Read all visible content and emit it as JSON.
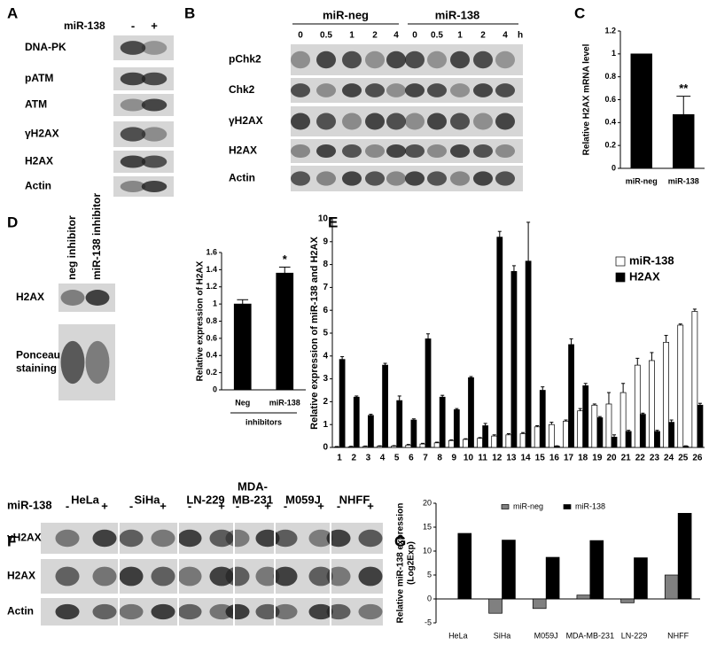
{
  "panels": [
    "A",
    "B",
    "C",
    "D",
    "E",
    "F",
    "G"
  ],
  "blots": {
    "A": {
      "header": "miR-138",
      "lanes": [
        "-",
        "+"
      ],
      "rows": [
        "DNA-PK",
        "pATM",
        "ATM",
        "γH2AX",
        "H2AX",
        "Actin"
      ]
    },
    "B": {
      "groups": [
        {
          "name": "miR-neg",
          "times": [
            0,
            0.5,
            1,
            2,
            4
          ]
        },
        {
          "name": "miR-138",
          "times": [
            0,
            0.5,
            1,
            2,
            4
          ]
        }
      ],
      "unit": "h",
      "rows": [
        "pChk2",
        "Chk2",
        "γH2AX",
        "H2AX",
        "Actin"
      ]
    },
    "D": {
      "lanes": [
        "neg inhibitor",
        "miR-138 inhibitor"
      ],
      "rows": [
        [
          "H2AX"
        ],
        [
          "Ponceau",
          "staining"
        ]
      ]
    },
    "F": {
      "header": "miR-138",
      "cells": [
        [
          "HeLa"
        ],
        [
          "SiHa"
        ],
        [
          "LN-229"
        ],
        [
          "MDA-",
          "MB-231"
        ],
        [
          "M059J"
        ],
        [
          "NHFF"
        ]
      ],
      "lanes": [
        "-",
        "+"
      ],
      "rows": [
        "γH2AX",
        "H2AX",
        "Actin"
      ]
    }
  },
  "chart_data": [
    {
      "type": "bar",
      "categories": [
        "miR-neg",
        "miR-138"
      ],
      "values": [
        1,
        0.47
      ],
      "errors": [
        null,
        0.16
      ],
      "color": "#000000",
      "ylim": [
        0,
        1.2
      ],
      "yticks": [
        0,
        0.2,
        0.4,
        0.6,
        0.8,
        1,
        1.2
      ],
      "ylabel": "Relative H2AX mRNA level",
      "annotations": [
        "**"
      ]
    },
    {
      "type": "bar",
      "categories": [
        "Neg",
        "miR-138"
      ],
      "values": [
        1.0,
        1.36
      ],
      "errors": [
        0.05,
        0.07
      ],
      "color": "#000000",
      "ylim": [
        0,
        1.6
      ],
      "yticks": [
        0,
        0.2,
        0.4,
        0.6,
        0.8,
        1,
        1.2,
        1.4,
        1.6
      ],
      "ylabel": "Relative expression of H2AX",
      "xlabel": "inhibitors",
      "annotations": [
        "*"
      ]
    },
    {
      "type": "bar",
      "categories": [
        "1",
        "2",
        "3",
        "4",
        "5",
        "6",
        "7",
        "8",
        "9",
        "10",
        "11",
        "12",
        "13",
        "14",
        "15",
        "16",
        "17",
        "18",
        "19",
        "20",
        "21",
        "22",
        "23",
        "24",
        "25",
        "26"
      ],
      "series": [
        {
          "name": "miR-138",
          "color": "#ffffff",
          "values": [
            0.02,
            0.03,
            0.04,
            0.05,
            0.06,
            0.1,
            0.15,
            0.2,
            0.3,
            0.35,
            0.4,
            0.5,
            0.55,
            0.6,
            0.9,
            1.0,
            1.15,
            1.6,
            1.85,
            1.9,
            2.4,
            3.6,
            3.8,
            4.6,
            5.35,
            5.95
          ],
          "errors": [
            0.02,
            0.02,
            0.02,
            0.02,
            0.02,
            0.03,
            0.03,
            0.03,
            0.03,
            0.03,
            0.03,
            0.05,
            0.05,
            0.05,
            0.05,
            0.1,
            0.05,
            0.1,
            0.05,
            0.5,
            0.4,
            0.3,
            0.35,
            0.3,
            0.05,
            0.1
          ]
        },
        {
          "name": "H2AX",
          "color": "#000000",
          "values": [
            3.85,
            2.2,
            1.4,
            3.6,
            2.05,
            1.2,
            4.75,
            2.2,
            1.65,
            3.05,
            0.95,
            9.2,
            7.7,
            8.15,
            2.5,
            0.05,
            4.5,
            2.7,
            1.3,
            0.45,
            0.7,
            1.45,
            0.7,
            1.1,
            0.05,
            1.85
          ],
          "errors": [
            0.12,
            0.05,
            0.05,
            0.08,
            0.2,
            0.05,
            0.22,
            0.08,
            0.05,
            0.05,
            0.1,
            0.25,
            0.25,
            1.7,
            0.15,
            0.02,
            0.25,
            0.1,
            0.05,
            0.1,
            0.05,
            0.05,
            0.05,
            0.1,
            0.02,
            0.08
          ]
        }
      ],
      "ylim": [
        0,
        10
      ],
      "yticks": [
        0,
        1,
        2,
        3,
        4,
        5,
        6,
        7,
        8,
        9,
        10
      ],
      "ylabel": "Relative expression of miR-138 and H2AX",
      "legend": "upper right"
    },
    {
      "type": "bar",
      "categories": [
        "HeLa",
        "SiHa",
        "M059J",
        "MDA-MB-231",
        "LN-229",
        "NHFF"
      ],
      "series": [
        {
          "name": "miR-neg",
          "color": "#808080",
          "values": [
            0,
            -3,
            -2,
            0.8,
            -0.8,
            5
          ]
        },
        {
          "name": "miR-138",
          "color": "#000000",
          "values": [
            13.7,
            12.3,
            8.7,
            12.2,
            8.6,
            17.9
          ]
        }
      ],
      "ylim": [
        -5,
        20
      ],
      "yticks": [
        -5,
        0,
        5,
        10,
        15,
        20
      ],
      "ylabel": [
        "Relative miR-138 expression",
        "(Log2Exp)"
      ],
      "legend": "upper center"
    }
  ]
}
